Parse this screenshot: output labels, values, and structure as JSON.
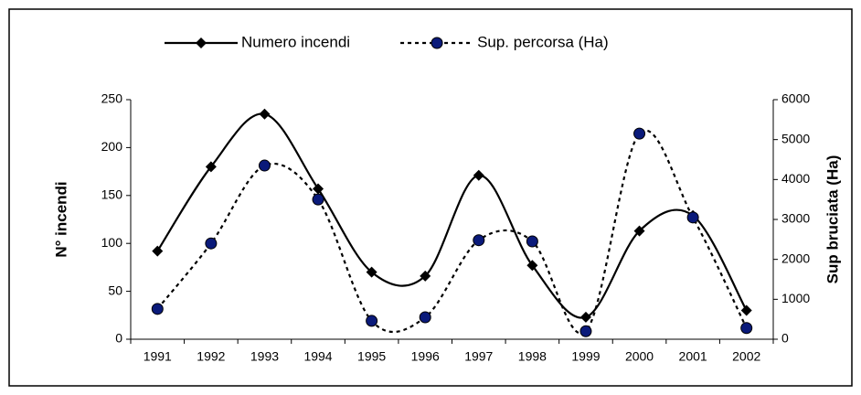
{
  "chart_data": {
    "type": "line",
    "categories": [
      "1991",
      "1992",
      "1993",
      "1994",
      "1995",
      "1996",
      "1997",
      "1998",
      "1999",
      "2000",
      "2001",
      "2002"
    ],
    "ylabel": "N° incendi",
    "y2label": "Sup bruciata (Ha)",
    "ylim": [
      0,
      250
    ],
    "yticks": [
      0,
      50,
      100,
      150,
      200,
      250
    ],
    "y2lim": [
      0,
      6000
    ],
    "y2ticks": [
      0,
      1000,
      2000,
      3000,
      4000,
      5000,
      6000
    ],
    "legend": "top",
    "smooth": true,
    "series": [
      {
        "name": "Numero incendi",
        "color": "#000000",
        "marker": "diamond",
        "line_style": "solid",
        "values": [
          92,
          180,
          235,
          157,
          70,
          66,
          171,
          77,
          23,
          113,
          129,
          30
        ]
      },
      {
        "name": "Sup. percorsa (Ha)",
        "color": "#000000",
        "marker_color": "#0a1a7a",
        "marker": "circle",
        "line_style": "dashed",
        "axis": "y2",
        "values": [
          760,
          2400,
          4350,
          3500,
          460,
          550,
          2480,
          2450,
          200,
          5150,
          3050,
          280
        ]
      }
    ]
  }
}
